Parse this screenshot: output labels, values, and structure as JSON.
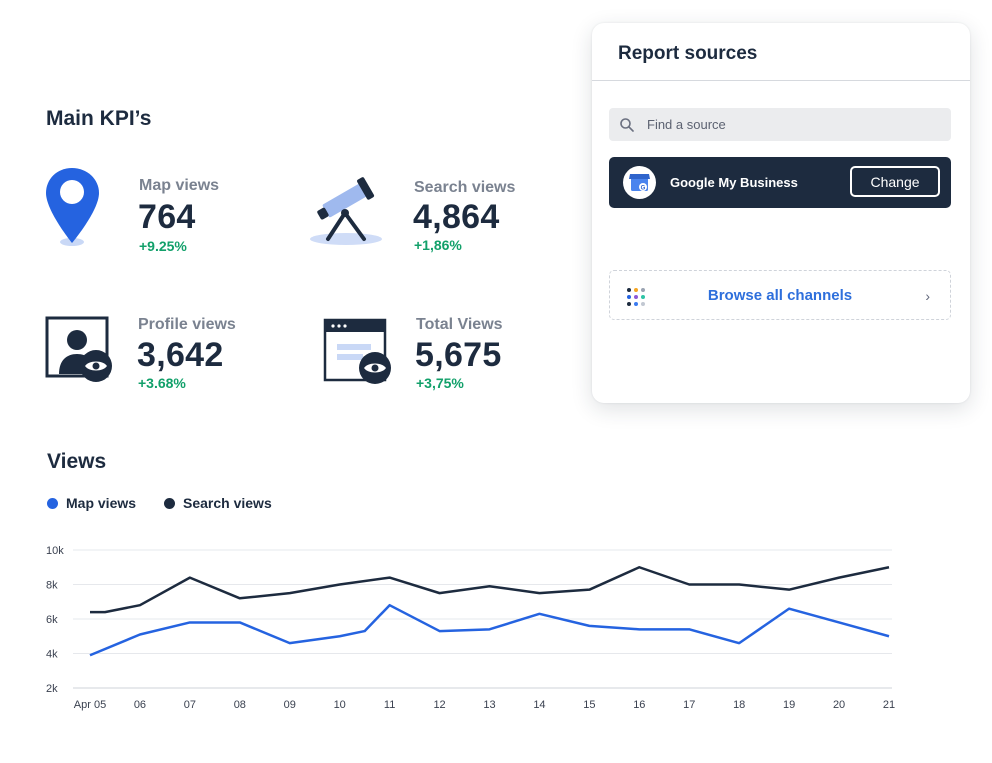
{
  "kpis": {
    "title": "Main KPI’s",
    "items": [
      {
        "label": "Map views",
        "value": "764",
        "change": "+9.25%",
        "icon": "map-pin-icon"
      },
      {
        "label": "Search views",
        "value": "4,864",
        "change": "+1,86%",
        "icon": "telescope-icon"
      },
      {
        "label": "Profile views",
        "value": "3,642",
        "change": "+3.68%",
        "icon": "profile-eye-icon"
      },
      {
        "label": "Total Views",
        "value": "5,675",
        "change": "+3,75%",
        "icon": "browser-eye-icon"
      }
    ]
  },
  "views": {
    "title": "Views",
    "legend": [
      {
        "name": "Map views",
        "color": "#2563e0"
      },
      {
        "name": "Search views",
        "color": "#1d2b3f"
      }
    ]
  },
  "chart_data": {
    "type": "line",
    "x": [
      "Apr 05",
      "06",
      "07",
      "08",
      "09",
      "10",
      "11",
      "12",
      "13",
      "14",
      "15",
      "16",
      "17",
      "18",
      "19",
      "20",
      "21"
    ],
    "y_ticks": [
      "10k",
      "8k",
      "6k",
      "4k",
      "2k"
    ],
    "ylim": [
      2000,
      10000
    ],
    "grid": true,
    "legend_position": "top-left",
    "series": [
      {
        "name": "Search views",
        "color": "#1d2b3f",
        "points": [
          [
            "Apr 05",
            6400
          ],
          [
            "05b",
            6400
          ],
          [
            "06",
            6800
          ],
          [
            "07",
            8400
          ],
          [
            "08",
            7200
          ],
          [
            "09",
            7500
          ],
          [
            "10",
            8000
          ],
          [
            "11",
            8400
          ],
          [
            "12",
            7500
          ],
          [
            "13",
            7900
          ],
          [
            "14",
            7500
          ],
          [
            "15",
            7700
          ],
          [
            "16",
            9000
          ],
          [
            "17",
            8000
          ],
          [
            "18",
            8000
          ],
          [
            "19",
            7700
          ],
          [
            "20",
            8400
          ],
          [
            "21",
            9000
          ]
        ]
      },
      {
        "name": "Map views",
        "color": "#2563e0",
        "points": [
          [
            "Apr 05",
            3900
          ],
          [
            "06",
            5100
          ],
          [
            "07",
            5800
          ],
          [
            "08",
            5800
          ],
          [
            "09",
            4600
          ],
          [
            "10",
            5000
          ],
          [
            "10b",
            5300
          ],
          [
            "11",
            6800
          ],
          [
            "12",
            5300
          ],
          [
            "13",
            5400
          ],
          [
            "14",
            6300
          ],
          [
            "15",
            5600
          ],
          [
            "16",
            5400
          ],
          [
            "17",
            5400
          ],
          [
            "18",
            4600
          ],
          [
            "19",
            6600
          ],
          [
            "20",
            5800
          ],
          [
            "21",
            5000
          ]
        ]
      }
    ]
  },
  "panel": {
    "title": "Report sources",
    "search_placeholder": "Find a source",
    "source": {
      "name": "Google My Business",
      "button": "Change"
    },
    "browse_label": "Browse all channels"
  }
}
